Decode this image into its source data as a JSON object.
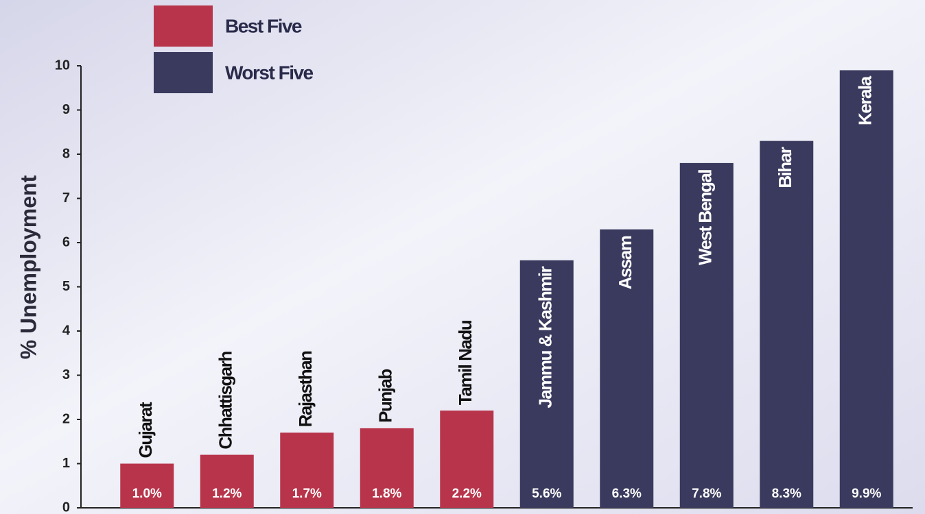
{
  "chart_data": {
    "type": "bar",
    "y_label": "% Unemployment",
    "categories": [
      "Gujarat",
      "Chhattisgarh",
      "Rajasthan",
      "Punjab",
      "Tamil Nadu",
      "Jammu & Kashmir",
      "Assam",
      "West Bengal",
      "Bihar",
      "Kerala"
    ],
    "series": [
      {
        "name": "Best Five",
        "color": "#b8344a",
        "values": [
          1.0,
          1.2,
          1.7,
          1.8,
          2.2,
          null,
          null,
          null,
          null,
          null
        ],
        "value_labels": [
          "1.0%",
          "1.2%",
          "1.7%",
          "1.8%",
          "2.2%",
          null,
          null,
          null,
          null,
          null
        ]
      },
      {
        "name": "Worst Five",
        "color": "#3a3a5e",
        "values": [
          null,
          null,
          null,
          null,
          null,
          5.6,
          6.3,
          7.8,
          8.3,
          9.9
        ],
        "value_labels": [
          null,
          null,
          null,
          null,
          null,
          "5.6%",
          "6.3%",
          "7.8%",
          "8.3%",
          "9.9%"
        ]
      }
    ],
    "ylim": [
      0,
      10
    ],
    "yticks": [
      0,
      1,
      2,
      3,
      4,
      5,
      6,
      7,
      8,
      9,
      10
    ]
  }
}
